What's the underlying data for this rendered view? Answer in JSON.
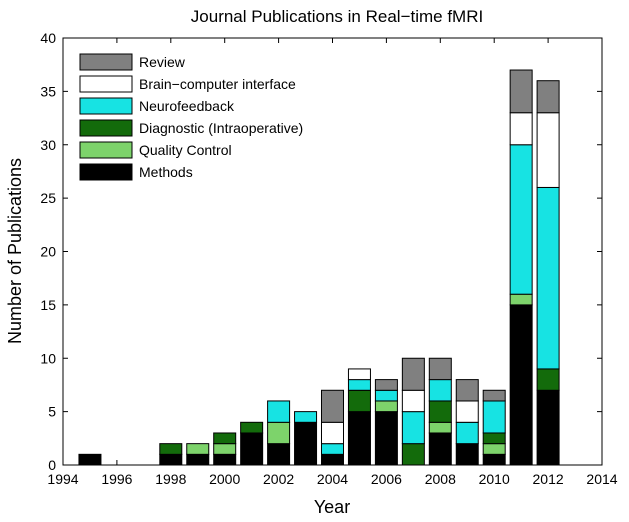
{
  "chart_data": {
    "type": "bar",
    "stacked": true,
    "title": "Journal Publications in Real−time fMRI",
    "xlabel": "Year",
    "ylabel": "Number of Publications",
    "xlim": [
      1994,
      2014
    ],
    "ylim": [
      0,
      40
    ],
    "xticks": [
      "1994",
      "1996",
      "1998",
      "2000",
      "2002",
      "2004",
      "2006",
      "2008",
      "2010",
      "2012",
      "2014"
    ],
    "yticks": [
      "0",
      "5",
      "10",
      "15",
      "20",
      "25",
      "30",
      "35",
      "40"
    ],
    "legend_position": "top-left",
    "grid": false,
    "x": [
      1995,
      1998,
      1999,
      2000,
      2001,
      2002,
      2003,
      2004,
      2005,
      2006,
      2007,
      2008,
      2009,
      2010,
      2011,
      2012
    ],
    "series": [
      {
        "name": "Methods",
        "color": "#000000",
        "values": [
          1,
          1,
          1,
          1,
          3,
          2,
          4,
          1,
          5,
          5,
          0,
          3,
          2,
          1,
          15,
          7
        ]
      },
      {
        "name": "Quality Control",
        "color": "#7dd36b",
        "values": [
          0,
          0,
          1,
          1,
          0,
          2,
          0,
          0,
          0,
          1,
          0,
          1,
          0,
          1,
          1,
          0
        ]
      },
      {
        "name": "Diagnostic (Intraoperative)",
        "color": "#136b0b",
        "values": [
          0,
          1,
          0,
          1,
          1,
          0,
          0,
          0,
          2,
          0,
          2,
          2,
          0,
          1,
          0,
          2
        ]
      },
      {
        "name": "Neurofeedback",
        "color": "#17e3e3",
        "values": [
          0,
          0,
          0,
          0,
          0,
          2,
          1,
          1,
          1,
          1,
          3,
          2,
          2,
          3,
          14,
          17
        ]
      },
      {
        "name": "Brain−computer interface",
        "color": "#ffffff",
        "values": [
          0,
          0,
          0,
          0,
          0,
          0,
          0,
          2,
          1,
          0,
          2,
          0,
          2,
          0,
          3,
          7
        ]
      },
      {
        "name": "Review",
        "color": "#808080",
        "values": [
          0,
          0,
          0,
          0,
          0,
          0,
          0,
          3,
          0,
          1,
          3,
          2,
          2,
          1,
          4,
          3
        ]
      }
    ],
    "legend_order": [
      "Review",
      "Brain−computer interface",
      "Neurofeedback",
      "Diagnostic (Intraoperative)",
      "Quality Control",
      "Methods"
    ]
  }
}
